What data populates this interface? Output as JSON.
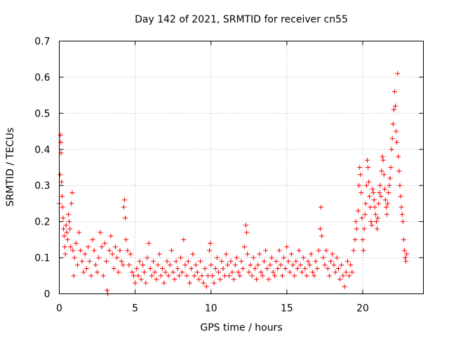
{
  "chart_data": {
    "type": "scatter",
    "title": "Day 142 of 2021, SRMTID for receiver cn55",
    "xlabel": "GPS time / hours",
    "ylabel": "SRMTID / TECUs",
    "xlim": [
      0,
      24
    ],
    "ylim": [
      0,
      0.7
    ],
    "xticks": [
      0,
      5,
      10,
      15,
      20
    ],
    "xtick_labels": [
      "0",
      "5",
      "10",
      "15",
      "20"
    ],
    "yticks": [
      0,
      0.1,
      0.2,
      0.3,
      0.4,
      0.5,
      0.6,
      0.7
    ],
    "ytick_labels": [
      "0",
      "0.1",
      "0.2",
      "0.3",
      "0.4",
      "0.5",
      "0.6",
      "0.7"
    ],
    "grid": true,
    "marker": "+",
    "color": "#ff0000",
    "series": [
      {
        "name": "SRMTID",
        "points": [
          [
            0.0,
            0.25
          ],
          [
            0.05,
            0.33
          ],
          [
            0.08,
            0.44
          ],
          [
            0.1,
            0.42
          ],
          [
            0.12,
            0.39
          ],
          [
            0.15,
            0.31
          ],
          [
            0.18,
            0.27
          ],
          [
            0.22,
            0.24
          ],
          [
            0.25,
            0.21
          ],
          [
            0.28,
            0.18
          ],
          [
            0.32,
            0.16
          ],
          [
            0.36,
            0.13
          ],
          [
            0.4,
            0.11
          ],
          [
            0.45,
            0.19
          ],
          [
            0.5,
            0.17
          ],
          [
            0.55,
            0.15
          ],
          [
            0.6,
            0.22
          ],
          [
            0.65,
            0.2
          ],
          [
            0.7,
            0.18
          ],
          [
            0.75,
            0.13
          ],
          [
            0.8,
            0.25
          ],
          [
            0.85,
            0.28
          ],
          [
            0.9,
            0.12
          ],
          [
            0.95,
            0.05
          ],
          [
            1.0,
            0.1
          ],
          [
            1.1,
            0.14
          ],
          [
            1.2,
            0.08
          ],
          [
            1.3,
            0.17
          ],
          [
            1.4,
            0.12
          ],
          [
            1.5,
            0.09
          ],
          [
            1.6,
            0.06
          ],
          [
            1.7,
            0.11
          ],
          [
            1.8,
            0.07
          ],
          [
            1.9,
            0.13
          ],
          [
            2.0,
            0.09
          ],
          [
            2.1,
            0.05
          ],
          [
            2.2,
            0.15
          ],
          [
            2.3,
            0.12
          ],
          [
            2.4,
            0.08
          ],
          [
            2.5,
            0.06
          ],
          [
            2.6,
            0.1
          ],
          [
            2.7,
            0.17
          ],
          [
            2.8,
            0.13
          ],
          [
            2.9,
            0.05
          ],
          [
            3.0,
            0.14
          ],
          [
            3.1,
            0.09
          ],
          [
            3.15,
            0.01
          ],
          [
            3.2,
            0.0
          ],
          [
            3.3,
            0.12
          ],
          [
            3.4,
            0.16
          ],
          [
            3.5,
            0.11
          ],
          [
            3.6,
            0.07
          ],
          [
            3.7,
            0.13
          ],
          [
            3.8,
            0.1
          ],
          [
            3.9,
            0.06
          ],
          [
            4.0,
            0.12
          ],
          [
            4.1,
            0.09
          ],
          [
            4.2,
            0.08
          ],
          [
            4.25,
            0.24
          ],
          [
            4.3,
            0.26
          ],
          [
            4.35,
            0.21
          ],
          [
            4.4,
            0.15
          ],
          [
            4.5,
            0.12
          ],
          [
            4.6,
            0.08
          ],
          [
            4.7,
            0.11
          ],
          [
            4.8,
            0.06
          ],
          [
            4.9,
            0.05
          ],
          [
            5.0,
            0.03
          ],
          [
            5.1,
            0.07
          ],
          [
            5.2,
            0.05
          ],
          [
            5.3,
            0.09
          ],
          [
            5.4,
            0.04
          ],
          [
            5.5,
            0.08
          ],
          [
            5.6,
            0.06
          ],
          [
            5.7,
            0.03
          ],
          [
            5.8,
            0.1
          ],
          [
            5.9,
            0.14
          ],
          [
            6.0,
            0.07
          ],
          [
            6.1,
            0.05
          ],
          [
            6.2,
            0.09
          ],
          [
            6.3,
            0.06
          ],
          [
            6.4,
            0.04
          ],
          [
            6.5,
            0.08
          ],
          [
            6.6,
            0.11
          ],
          [
            6.7,
            0.05
          ],
          [
            6.8,
            0.07
          ],
          [
            6.9,
            0.03
          ],
          [
            7.0,
            0.06
          ],
          [
            7.1,
            0.09
          ],
          [
            7.2,
            0.05
          ],
          [
            7.3,
            0.08
          ],
          [
            7.4,
            0.12
          ],
          [
            7.5,
            0.06
          ],
          [
            7.6,
            0.04
          ],
          [
            7.7,
            0.09
          ],
          [
            7.8,
            0.07
          ],
          [
            7.9,
            0.05
          ],
          [
            8.0,
            0.1
          ],
          [
            8.1,
            0.06
          ],
          [
            8.2,
            0.15
          ],
          [
            8.3,
            0.08
          ],
          [
            8.4,
            0.05
          ],
          [
            8.5,
            0.09
          ],
          [
            8.6,
            0.03
          ],
          [
            8.7,
            0.07
          ],
          [
            8.8,
            0.11
          ],
          [
            8.9,
            0.05
          ],
          [
            9.0,
            0.08
          ],
          [
            9.1,
            0.06
          ],
          [
            9.2,
            0.04
          ],
          [
            9.3,
            0.09
          ],
          [
            9.4,
            0.05
          ],
          [
            9.5,
            0.03
          ],
          [
            9.6,
            0.07
          ],
          [
            9.7,
            0.02
          ],
          [
            9.8,
            0.05
          ],
          [
            9.9,
            0.12
          ],
          [
            9.95,
            0.14
          ],
          [
            10.0,
            0.08
          ],
          [
            10.1,
            0.05
          ],
          [
            10.2,
            0.03
          ],
          [
            10.3,
            0.07
          ],
          [
            10.4,
            0.1
          ],
          [
            10.5,
            0.06
          ],
          [
            10.6,
            0.04
          ],
          [
            10.7,
            0.09
          ],
          [
            10.8,
            0.07
          ],
          [
            10.9,
            0.05
          ],
          [
            11.0,
            0.11
          ],
          [
            11.1,
            0.08
          ],
          [
            11.2,
            0.05
          ],
          [
            11.3,
            0.09
          ],
          [
            11.4,
            0.06
          ],
          [
            11.5,
            0.04
          ],
          [
            11.6,
            0.08
          ],
          [
            11.7,
            0.1
          ],
          [
            11.8,
            0.06
          ],
          [
            11.9,
            0.05
          ],
          [
            12.0,
            0.09
          ],
          [
            12.1,
            0.07
          ],
          [
            12.2,
            0.13
          ],
          [
            12.3,
            0.19
          ],
          [
            12.35,
            0.17
          ],
          [
            12.4,
            0.11
          ],
          [
            12.5,
            0.06
          ],
          [
            12.6,
            0.08
          ],
          [
            12.7,
            0.05
          ],
          [
            12.8,
            0.1
          ],
          [
            12.9,
            0.07
          ],
          [
            13.0,
            0.04
          ],
          [
            13.1,
            0.08
          ],
          [
            13.2,
            0.11
          ],
          [
            13.3,
            0.06
          ],
          [
            13.4,
            0.05
          ],
          [
            13.5,
            0.09
          ],
          [
            13.6,
            0.12
          ],
          [
            13.7,
            0.07
          ],
          [
            13.8,
            0.04
          ],
          [
            13.9,
            0.08
          ],
          [
            14.0,
            0.1
          ],
          [
            14.1,
            0.06
          ],
          [
            14.2,
            0.05
          ],
          [
            14.3,
            0.09
          ],
          [
            14.4,
            0.07
          ],
          [
            14.5,
            0.12
          ],
          [
            14.6,
            0.08
          ],
          [
            14.7,
            0.05
          ],
          [
            14.8,
            0.1
          ],
          [
            14.9,
            0.07
          ],
          [
            15.0,
            0.13
          ],
          [
            15.1,
            0.09
          ],
          [
            15.2,
            0.06
          ],
          [
            15.3,
            0.11
          ],
          [
            15.4,
            0.08
          ],
          [
            15.5,
            0.05
          ],
          [
            15.6,
            0.09
          ],
          [
            15.7,
            0.07
          ],
          [
            15.8,
            0.12
          ],
          [
            15.9,
            0.08
          ],
          [
            16.0,
            0.06
          ],
          [
            16.1,
            0.1
          ],
          [
            16.2,
            0.07
          ],
          [
            16.3,
            0.05
          ],
          [
            16.4,
            0.09
          ],
          [
            16.5,
            0.08
          ],
          [
            16.6,
            0.11
          ],
          [
            16.7,
            0.06
          ],
          [
            16.8,
            0.05
          ],
          [
            16.9,
            0.09
          ],
          [
            17.0,
            0.07
          ],
          [
            17.1,
            0.12
          ],
          [
            17.2,
            0.18
          ],
          [
            17.25,
            0.24
          ],
          [
            17.3,
            0.16
          ],
          [
            17.4,
            0.1
          ],
          [
            17.5,
            0.08
          ],
          [
            17.6,
            0.12
          ],
          [
            17.7,
            0.07
          ],
          [
            17.8,
            0.05
          ],
          [
            17.9,
            0.09
          ],
          [
            18.0,
            0.11
          ],
          [
            18.1,
            0.08
          ],
          [
            18.2,
            0.06
          ],
          [
            18.3,
            0.1
          ],
          [
            18.4,
            0.07
          ],
          [
            18.5,
            0.04
          ],
          [
            18.6,
            0.08
          ],
          [
            18.7,
            0.05
          ],
          [
            18.8,
            0.02
          ],
          [
            18.9,
            0.06
          ],
          [
            19.0,
            0.09
          ],
          [
            19.1,
            0.05
          ],
          [
            19.2,
            0.08
          ],
          [
            19.3,
            0.06
          ],
          [
            19.4,
            0.12
          ],
          [
            19.5,
            0.15
          ],
          [
            19.55,
            0.2
          ],
          [
            19.6,
            0.18
          ],
          [
            19.7,
            0.23
          ],
          [
            19.75,
            0.3
          ],
          [
            19.8,
            0.35
          ],
          [
            19.85,
            0.33
          ],
          [
            19.9,
            0.28
          ],
          [
            19.95,
            0.21
          ],
          [
            20.0,
            0.15
          ],
          [
            20.05,
            0.12
          ],
          [
            20.1,
            0.18
          ],
          [
            20.15,
            0.22
          ],
          [
            20.2,
            0.25
          ],
          [
            20.25,
            0.3
          ],
          [
            20.3,
            0.37
          ],
          [
            20.35,
            0.35
          ],
          [
            20.4,
            0.31
          ],
          [
            20.45,
            0.27
          ],
          [
            20.5,
            0.24
          ],
          [
            20.55,
            0.2
          ],
          [
            20.6,
            0.19
          ],
          [
            20.65,
            0.29
          ],
          [
            20.7,
            0.28
          ],
          [
            20.75,
            0.26
          ],
          [
            20.8,
            0.24
          ],
          [
            20.85,
            0.22
          ],
          [
            20.9,
            0.2
          ],
          [
            20.95,
            0.18
          ],
          [
            21.0,
            0.21
          ],
          [
            21.05,
            0.25
          ],
          [
            21.1,
            0.28
          ],
          [
            21.15,
            0.3
          ],
          [
            21.2,
            0.27
          ],
          [
            21.25,
            0.34
          ],
          [
            21.3,
            0.38
          ],
          [
            21.35,
            0.37
          ],
          [
            21.4,
            0.33
          ],
          [
            21.45,
            0.29
          ],
          [
            21.5,
            0.26
          ],
          [
            21.55,
            0.24
          ],
          [
            21.6,
            0.22
          ],
          [
            21.65,
            0.25
          ],
          [
            21.7,
            0.28
          ],
          [
            21.75,
            0.3
          ],
          [
            21.8,
            0.32
          ],
          [
            21.85,
            0.35
          ],
          [
            21.9,
            0.4
          ],
          [
            21.95,
            0.43
          ],
          [
            22.0,
            0.47
          ],
          [
            22.05,
            0.51
          ],
          [
            22.1,
            0.56
          ],
          [
            22.15,
            0.52
          ],
          [
            22.2,
            0.45
          ],
          [
            22.25,
            0.42
          ],
          [
            22.3,
            0.61
          ],
          [
            22.35,
            0.38
          ],
          [
            22.4,
            0.34
          ],
          [
            22.45,
            0.3
          ],
          [
            22.5,
            0.27
          ],
          [
            22.55,
            0.24
          ],
          [
            22.6,
            0.22
          ],
          [
            22.65,
            0.2
          ],
          [
            22.7,
            0.15
          ],
          [
            22.75,
            0.12
          ],
          [
            22.8,
            0.1
          ],
          [
            22.85,
            0.09
          ],
          [
            22.9,
            0.11
          ]
        ]
      }
    ]
  }
}
